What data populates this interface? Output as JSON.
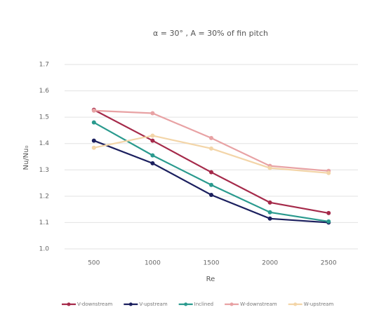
{
  "chart_data": {
    "type": "line",
    "title": "α = 30° , A = 30% of fin pitch",
    "x_label": "Re",
    "y_label": "Nu/Nu₀",
    "categories": [
      "500",
      "1000",
      "1500",
      "2000",
      "2500"
    ],
    "series": [
      {
        "name": "V-downstream",
        "color": "#a52a4a",
        "values": [
          1.528,
          1.411,
          1.291,
          1.176,
          1.136
        ]
      },
      {
        "name": "V-upstream",
        "color": "#1b1f5e",
        "values": [
          1.411,
          1.325,
          1.205,
          1.115,
          1.1
        ]
      },
      {
        "name": "Inclined",
        "color": "#2a9a8e",
        "values": [
          1.48,
          1.355,
          1.243,
          1.139,
          1.104
        ]
      },
      {
        "name": "W-downstream",
        "color": "#e8a2a4",
        "values": [
          1.525,
          1.515,
          1.421,
          1.315,
          1.296
        ]
      },
      {
        "name": "W-upstream",
        "color": "#f3d5a8",
        "values": [
          1.384,
          1.43,
          1.381,
          1.307,
          1.288
        ]
      }
    ],
    "ylim": [
      1.0,
      1.7
    ],
    "yticks": [
      {
        "value": 1.0,
        "label": "1.0"
      },
      1.1,
      1.2,
      1.3,
      1.4,
      1.5,
      1.6,
      1.7
    ],
    "grid": true,
    "legend": "bottom"
  }
}
